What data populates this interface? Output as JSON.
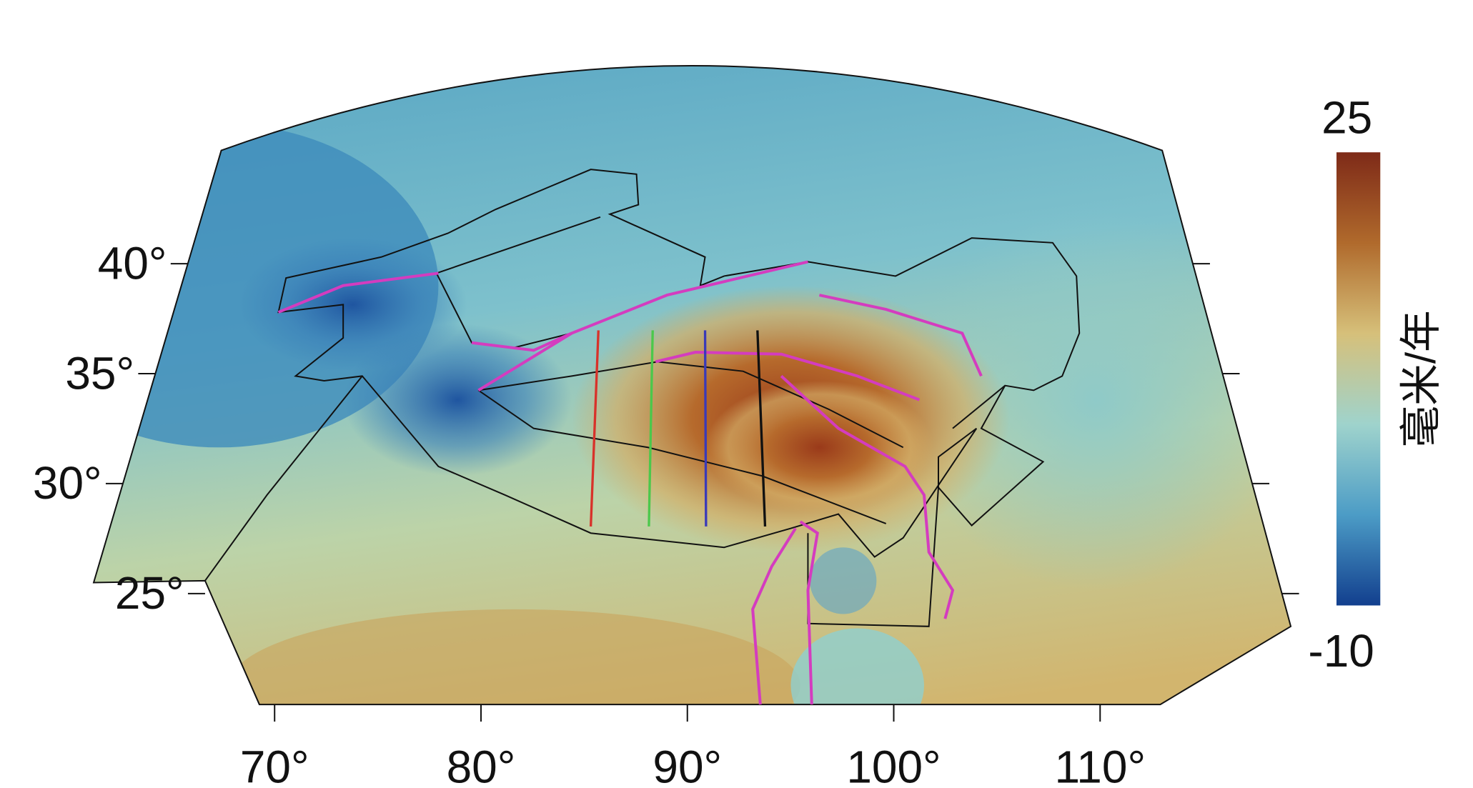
{
  "map": {
    "lon_ticks": [
      {
        "value": 70,
        "label": "70°"
      },
      {
        "value": 80,
        "label": "80°"
      },
      {
        "value": 90,
        "label": "90°"
      },
      {
        "value": 100,
        "label": "100°"
      },
      {
        "value": 110,
        "label": "110°"
      }
    ],
    "lat_ticks": [
      {
        "value": 40,
        "label": "40°"
      },
      {
        "value": 35,
        "label": "35°"
      },
      {
        "value": 30,
        "label": "30°"
      },
      {
        "value": 25,
        "label": "25°"
      }
    ],
    "colorbar": {
      "max": 25,
      "min": -10,
      "label": "毫米/年"
    }
  }
}
